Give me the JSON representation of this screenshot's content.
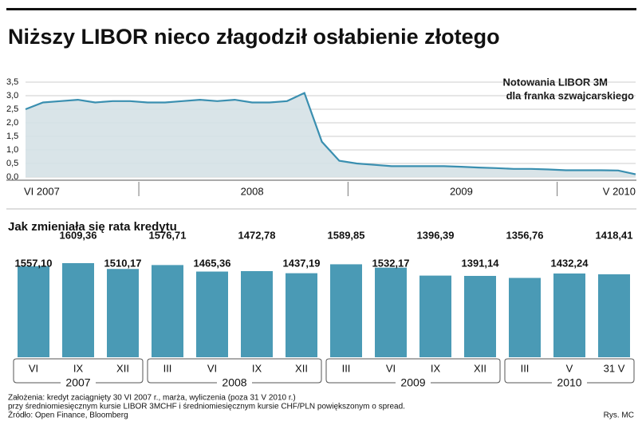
{
  "title": "Niższy LIBOR nieco złagodził osłabienie złotego",
  "chart_data": [
    {
      "type": "line",
      "annotation": [
        "Notowania LIBOR 3M",
        "dla franka szwajcarskiego"
      ],
      "categories": [
        "VI 2007",
        null,
        null,
        null,
        null,
        null,
        null,
        null,
        null,
        null,
        null,
        null,
        null,
        "2008",
        null,
        null,
        null,
        null,
        null,
        null,
        null,
        null,
        null,
        null,
        null,
        "2009",
        null,
        null,
        null,
        null,
        null,
        null,
        null,
        null,
        null,
        "V 2010"
      ],
      "values": [
        2.5,
        2.75,
        2.8,
        2.85,
        2.75,
        2.8,
        2.8,
        2.75,
        2.75,
        2.8,
        2.85,
        2.8,
        2.85,
        2.75,
        2.75,
        2.8,
        3.1,
        1.3,
        0.6,
        0.5,
        0.45,
        0.4,
        0.4,
        0.4,
        0.4,
        0.38,
        0.35,
        0.33,
        0.3,
        0.3,
        0.28,
        0.25,
        0.25,
        0.25,
        0.24,
        0.1
      ],
      "color": "#3a8fb0",
      "fill": "#d5e1e6",
      "ylim": [
        0,
        3.5
      ],
      "yticks": [
        {
          "value": 0,
          "label": "0,0"
        },
        {
          "value": 0.5,
          "label": "0,5"
        },
        {
          "value": 1,
          "label": "1,0"
        },
        {
          "value": 1.5,
          "label": "1,5"
        },
        {
          "value": 2,
          "label": "2,0"
        },
        {
          "value": 2.5,
          "label": "2,5"
        },
        {
          "value": 3,
          "label": "3,0"
        },
        {
          "value": 3.5,
          "label": "3,5"
        }
      ],
      "grid": true
    },
    {
      "type": "bar",
      "title": "Jak zmieniała się rata kredytu",
      "color": "#4a9ab5",
      "groups": [
        {
          "name": "2007",
          "categories": [
            "VI",
            "IX",
            "XII"
          ],
          "values": [
            1557.1,
            1609.36,
            1510.17
          ],
          "value_labels": [
            "1557,10",
            "1609,36",
            "1510,17"
          ]
        },
        {
          "name": "2008",
          "categories": [
            "III",
            "VI",
            "IX",
            "XII"
          ],
          "values": [
            1576.71,
            1465.36,
            1472.78,
            1437.19
          ],
          "value_labels": [
            "1576,71",
            "1465,36",
            "1472,78",
            "1437,19"
          ]
        },
        {
          "name": "2009",
          "categories": [
            "III",
            "VI",
            "IX",
            "XII"
          ],
          "values": [
            1589.85,
            1532.17,
            1396.39,
            1391.14
          ],
          "value_labels": [
            "1589,85",
            "1532,17",
            "1396,39",
            "1391,14"
          ]
        },
        {
          "name": "2010",
          "categories": [
            "III",
            "V",
            "31 V"
          ],
          "values": [
            1356.76,
            1432.24,
            1418.41
          ],
          "value_labels": [
            "1356,76",
            "1432,24",
            "1418,41"
          ]
        }
      ]
    }
  ],
  "notes": [
    "Założenia: kredyt zaciągnięty 30 VI 2007 r., marża,  wyliczenia (poza 31 V 2010 r.)",
    "przy średniomiesięcznym kursie LIBOR 3MCHF i średniomiesięcznym kursie CHF/PLN powiększonym o spread.",
    "Źródło: Open Finance, Bloomberg"
  ],
  "credit": "Rys. MC"
}
